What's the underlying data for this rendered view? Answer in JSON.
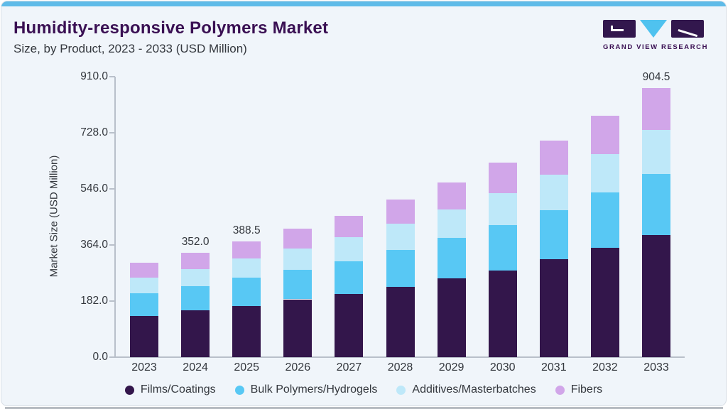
{
  "page": {
    "title": "Humidity-responsive Polymers Market",
    "subtitle": "Size, by Product, 2023 - 2033 (USD Million)"
  },
  "logo": {
    "text": "GRAND VIEW RESEARCH"
  },
  "colors": {
    "accent_bar": "#5FBBE8",
    "card_background": "#F0F5FA",
    "title_text": "#3A1053",
    "body_text": "#34383E",
    "axis_line": "#B9C0CA",
    "logo_purple": "#32174D",
    "logo_blue": "#4FC2EF"
  },
  "chart_data": {
    "type": "bar",
    "stacked": true,
    "grid": false,
    "legend_position": "bottom",
    "ylabel": "Market Size (USD Million)",
    "ylim": [
      0,
      910
    ],
    "yticks": [
      "910.0",
      "728.0",
      "546.0",
      "364.0",
      "182.0",
      "0.0"
    ],
    "categories": [
      "2023",
      "2024",
      "2025",
      "2026",
      "2027",
      "2028",
      "2029",
      "2030",
      "2031",
      "2032",
      "2033"
    ],
    "series": [
      {
        "name": "Films/Coatings",
        "color": "#33164B",
        "values": [
          139.5,
          156.5,
          172.5,
          194.5,
          212.0,
          236.0,
          264.0,
          292.0,
          330.5,
          366.5,
          409.5
        ]
      },
      {
        "name": "Bulk Polymers/Hydrogels",
        "color": "#58C8F4",
        "values": [
          75.5,
          81.5,
          94.5,
          98.0,
          110.5,
          124.0,
          136.0,
          153.0,
          164.0,
          186.5,
          206.5
        ]
      },
      {
        "name": "Additives/Masterbatches",
        "color": "#BEE8F9",
        "values": [
          53.0,
          57.5,
          65.5,
          72.0,
          81.5,
          88.0,
          96.0,
          105.5,
          118.5,
          129.5,
          147.0
        ]
      },
      {
        "name": "Fibers",
        "color": "#D1A6E9",
        "values": [
          50.0,
          56.5,
          56.0,
          68.0,
          70.5,
          83.0,
          91.0,
          104.0,
          115.0,
          128.0,
          141.5
        ]
      }
    ],
    "total_labels": [
      {
        "category": "2024",
        "text": "352.0"
      },
      {
        "category": "2025",
        "text": "388.5"
      },
      {
        "category": "2033",
        "text": "904.5"
      }
    ]
  }
}
